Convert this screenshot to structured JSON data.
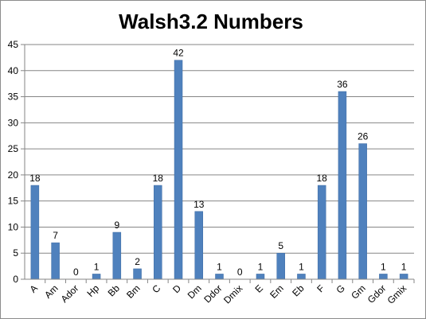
{
  "chart_data": {
    "type": "bar",
    "title": "Walsh3.2 Numbers",
    "xlabel": "",
    "ylabel": "",
    "ylim": [
      0,
      45
    ],
    "yticks": [
      "0",
      "5",
      "10",
      "15",
      "20",
      "25",
      "30",
      "35",
      "40",
      "45"
    ],
    "grid": true,
    "legend": "none",
    "bar_color": "#4f81bd",
    "categories": [
      "A",
      "Am",
      "Ador",
      "Hp",
      "Bb",
      "Bm",
      "C",
      "D",
      "Dm",
      "Ddor",
      "Dmix",
      "E",
      "Em",
      "Eb",
      "F",
      "G",
      "Gm",
      "Gdor",
      "Gmix"
    ],
    "values": [
      18,
      7,
      0,
      1,
      9,
      2,
      18,
      42,
      13,
      1,
      0,
      1,
      5,
      1,
      18,
      36,
      26,
      1,
      1
    ]
  }
}
